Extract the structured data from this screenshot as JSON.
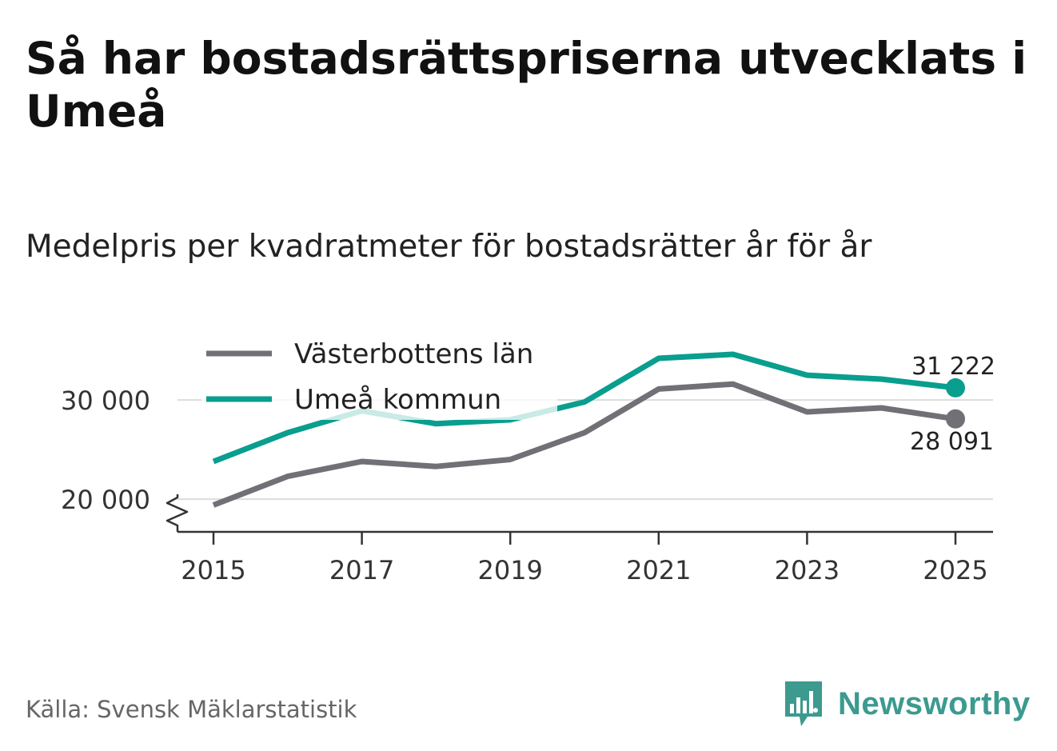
{
  "title": "Så har bostadsrättspriserna utvecklats i Umeå",
  "subtitle": "Medelpris per kvadratmeter för bostadsrätter år för år",
  "source": "Källa: Svensk Mäklarstatistik",
  "brand": {
    "name": "Newsworthy",
    "icon": "bar-chart-speech-bubble-icon",
    "color": "#3c9a8f"
  },
  "chart_data": {
    "type": "line",
    "x": [
      2015,
      2016,
      2017,
      2018,
      2019,
      2020,
      2021,
      2022,
      2023,
      2024,
      2025
    ],
    "xticks": [
      2015,
      2017,
      2019,
      2021,
      2023,
      2025
    ],
    "xtick_labels": [
      "2015",
      "2017",
      "2019",
      "2021",
      "2023",
      "2025"
    ],
    "yticks": [
      20000,
      30000
    ],
    "ytick_labels": [
      "20 000",
      "30 000"
    ],
    "ylim": [
      16700,
      36700
    ],
    "axis_break": true,
    "grid": true,
    "legend_position": "top-left",
    "series": [
      {
        "name": "Västerbottens län",
        "color": "#707076",
        "values": [
          19400,
          22300,
          23800,
          23300,
          24000,
          26700,
          31100,
          31600,
          28800,
          29200,
          28091
        ],
        "end_label": "28 091"
      },
      {
        "name": "Umeå kommun",
        "color": "#099e8e",
        "values": [
          23800,
          26700,
          28900,
          27600,
          28000,
          29800,
          34200,
          34600,
          32500,
          32100,
          31222
        ],
        "end_label": "31 222"
      }
    ],
    "title": "Medelpris per kvadratmeter för bostadsrätter år för år",
    "xlabel": "",
    "ylabel": ""
  }
}
